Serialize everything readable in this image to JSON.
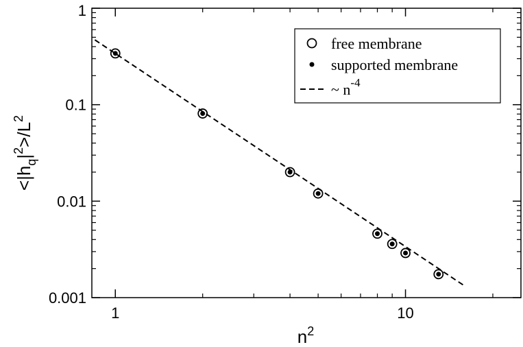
{
  "chart_data": {
    "type": "scatter",
    "x_scale": "log",
    "y_scale": "log",
    "xlim": [
      0.83,
      25
    ],
    "ylim": [
      0.001,
      1
    ],
    "x_ticks": [
      {
        "value": 1,
        "label": "1"
      },
      {
        "value": 10,
        "label": "10"
      }
    ],
    "x_minor_ticks": [
      2,
      3,
      4,
      5,
      6,
      7,
      8,
      9,
      20
    ],
    "y_ticks": [
      {
        "value": 0.001,
        "label": "0.001"
      },
      {
        "value": 0.01,
        "label": "0.01"
      },
      {
        "value": 0.1,
        "label": "0.1"
      },
      {
        "value": 1,
        "label": "1"
      }
    ],
    "y_minor_ticks": [
      0.002,
      0.003,
      0.004,
      0.005,
      0.006,
      0.007,
      0.008,
      0.009,
      0.02,
      0.03,
      0.04,
      0.05,
      0.06,
      0.07,
      0.08,
      0.09,
      0.2,
      0.3,
      0.4,
      0.5,
      0.6,
      0.7,
      0.8,
      0.9
    ],
    "xlabel": "n",
    "xlabel_sup": "2",
    "ylabel_parts": {
      "a": "<|h",
      "sub": "q",
      "b": "|",
      "sup1": "2",
      "c": ">/L",
      "sup2": "2"
    },
    "grid": false,
    "legend_position": "top-right",
    "series": [
      {
        "name": "free membrane",
        "marker": "open-circle",
        "x": [
          1,
          2,
          4,
          5,
          8,
          9,
          10,
          13
        ],
        "y": [
          0.34,
          0.081,
          0.02,
          0.012,
          0.0046,
          0.0036,
          0.0029,
          0.00175
        ]
      },
      {
        "name": "supported membrane",
        "marker": "filled-dot",
        "x": [
          1,
          2,
          4,
          5,
          8,
          9,
          10,
          13
        ],
        "y": [
          0.34,
          0.081,
          0.02,
          0.012,
          0.0046,
          0.0036,
          0.0029,
          0.00175
        ]
      },
      {
        "name": "~ n",
        "name_sup": "-4",
        "marker": "dashed-line",
        "x": [
          0.85,
          16
        ],
        "y": [
          0.47,
          0.00132
        ]
      }
    ]
  }
}
